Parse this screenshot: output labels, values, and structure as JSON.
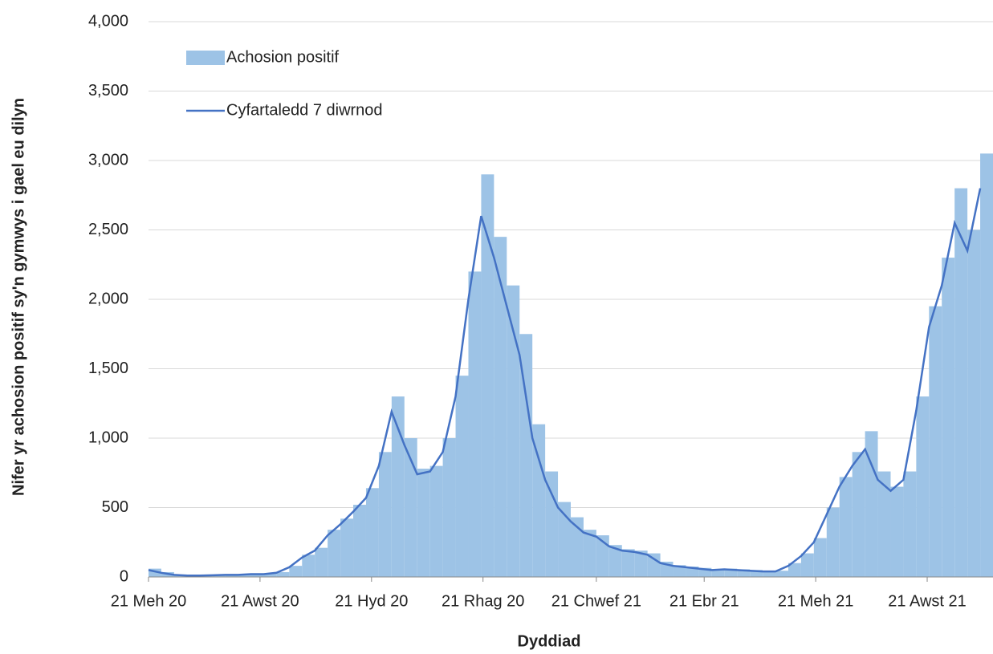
{
  "chart_data": {
    "type": "bar-line",
    "x_label": "Dyddiad",
    "y_label": "Nifer yr achosion positif sy'n gymwys i gael eu dilyn",
    "x": [
      "2020-06-21",
      "2020-06-28",
      "2020-07-05",
      "2020-07-12",
      "2020-07-19",
      "2020-07-26",
      "2020-08-02",
      "2020-08-09",
      "2020-08-16",
      "2020-08-23",
      "2020-08-30",
      "2020-09-06",
      "2020-09-13",
      "2020-09-20",
      "2020-09-27",
      "2020-10-04",
      "2020-10-11",
      "2020-10-18",
      "2020-10-25",
      "2020-11-01",
      "2020-11-08",
      "2020-11-15",
      "2020-11-22",
      "2020-11-29",
      "2020-12-06",
      "2020-12-13",
      "2020-12-20",
      "2020-12-27",
      "2021-01-03",
      "2021-01-10",
      "2021-01-17",
      "2021-01-24",
      "2021-01-31",
      "2021-02-07",
      "2021-02-14",
      "2021-02-21",
      "2021-02-28",
      "2021-03-07",
      "2021-03-14",
      "2021-03-21",
      "2021-03-28",
      "2021-04-04",
      "2021-04-11",
      "2021-04-18",
      "2021-04-25",
      "2021-05-02",
      "2021-05-09",
      "2021-05-16",
      "2021-05-23",
      "2021-05-30",
      "2021-06-06",
      "2021-06-13",
      "2021-06-20",
      "2021-06-27",
      "2021-07-04",
      "2021-07-11",
      "2021-07-18",
      "2021-07-25",
      "2021-08-01",
      "2021-08-08",
      "2021-08-15",
      "2021-08-22",
      "2021-08-29",
      "2021-09-05",
      "2021-09-12",
      "2021-09-19"
    ],
    "series": [
      {
        "name": "Achosion positif",
        "color": "#9dc3e6",
        "kind": "bar",
        "values": [
          60,
          35,
          18,
          12,
          12,
          14,
          18,
          18,
          22,
          24,
          35,
          80,
          160,
          210,
          340,
          420,
          520,
          640,
          900,
          1300,
          1000,
          780,
          800,
          1000,
          1450,
          2200,
          2900,
          2450,
          2100,
          1750,
          1100,
          760,
          540,
          430,
          340,
          300,
          230,
          200,
          190,
          170,
          110,
          85,
          75,
          65,
          55,
          60,
          55,
          50,
          45,
          45,
          100,
          170,
          280,
          500,
          720,
          900,
          1050,
          760,
          650,
          760,
          1300,
          1950,
          2300,
          2800,
          2500,
          3050
        ]
      },
      {
        "name": "Cyfartaledd 7 diwrnod",
        "color": "#4472c4",
        "kind": "line",
        "values": [
          50,
          30,
          15,
          10,
          10,
          12,
          15,
          15,
          20,
          20,
          30,
          70,
          140,
          190,
          300,
          380,
          470,
          570,
          800,
          1190,
          950,
          740,
          760,
          900,
          1300,
          2000,
          2600,
          2300,
          1950,
          1600,
          1000,
          700,
          500,
          400,
          320,
          290,
          220,
          190,
          180,
          160,
          100,
          80,
          70,
          60,
          50,
          55,
          50,
          45,
          40,
          40,
          80,
          150,
          250,
          450,
          650,
          800,
          920,
          700,
          620,
          700,
          1200,
          1800,
          2100,
          2550,
          2350,
          2800
        ]
      }
    ],
    "xlim": [
      "2020-06-21",
      "2021-09-26"
    ],
    "xticks": [
      {
        "value": "2020-06-21",
        "label": "21 Meh 20"
      },
      {
        "value": "2020-08-21",
        "label": "21 Awst 20"
      },
      {
        "value": "2020-10-21",
        "label": "21 Hyd 20"
      },
      {
        "value": "2020-12-21",
        "label": "21 Rhag 20"
      },
      {
        "value": "2021-02-21",
        "label": "21 Chwef 21"
      },
      {
        "value": "2021-04-21",
        "label": "21 Ebr 21"
      },
      {
        "value": "2021-06-21",
        "label": "21 Meh 21"
      },
      {
        "value": "2021-08-21",
        "label": "21 Awst 21"
      }
    ],
    "ylim": [
      0,
      4000
    ],
    "yticks": [
      0,
      500,
      {
        "value": 1000,
        "label": "1,000"
      },
      {
        "value": 1500,
        "label": "1,500"
      },
      {
        "value": 2000,
        "label": "2,000"
      },
      {
        "value": 2500,
        "label": "2,500"
      },
      {
        "value": 3000,
        "label": "3,000"
      },
      {
        "value": 3500,
        "label": "3,500"
      },
      {
        "value": 4000,
        "label": "4,000"
      }
    ],
    "grid": true,
    "legend": "top-left"
  }
}
